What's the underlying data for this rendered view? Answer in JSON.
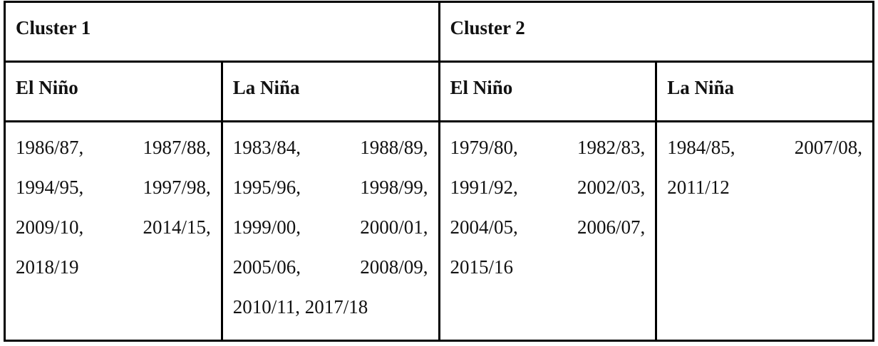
{
  "table": {
    "header": [
      "Cluster 1",
      "Cluster 2"
    ],
    "subheader": [
      "El Niño",
      "La Niña",
      "El Niño",
      "La Niña"
    ],
    "rows": [
      [
        "1986/87, 1987/88, 1994/95, 1997/98, 2009/10, 2014/15, 2018/19",
        "1983/84, 1988/89, 1995/96, 1998/99, 1999/00, 2000/01, 2005/06, 2008/09, 2010/11, 2017/18",
        "1979/80, 1982/83, 1991/92, 2002/03, 2004/05, 2006/07, 2015/16",
        "1984/85, 2007/08, 2011/12"
      ]
    ]
  }
}
